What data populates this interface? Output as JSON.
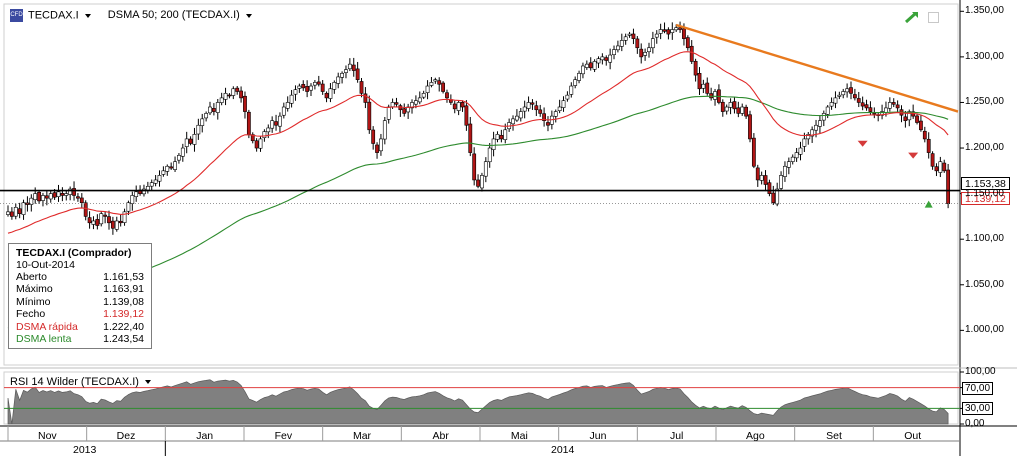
{
  "header": {
    "symbol": "TECDAX.I",
    "indicator": "DSMA 50; 200 (TECDAX.I)",
    "rsi_label": "RSI 14 Wilder (TECDAX.I)"
  },
  "legend": {
    "title": "TECDAX.I (Comprador)",
    "date": "10-Out-2014",
    "rows": [
      {
        "label": "Aberto",
        "value": "1.161,53"
      },
      {
        "label": "Máximo",
        "value": "1.163,91"
      },
      {
        "label": "Mínimo",
        "value": "1.139,08"
      },
      {
        "label": "Fecho",
        "value": "1.139,12"
      },
      {
        "label": "DSMA rápida",
        "value": "1.222,40"
      },
      {
        "label": "DSMA lenta",
        "value": "1.243,54"
      }
    ]
  },
  "price_tags": {
    "level": "1.153,38",
    "last": "1.139,12"
  },
  "colors": {
    "up": "#ffffff",
    "down": "#b01515",
    "fast_ma": "#e02b2b",
    "slow_ma": "#2e8b2e",
    "trendline": "#e87a1e",
    "rsi_fill": "#808080"
  },
  "icons": {
    "logo": "cfd-logo-icon",
    "trend": "trend-arrow-icon",
    "window": "window-icon"
  },
  "chart_data": {
    "type": "candlestick",
    "y_ticks": [
      "1.350,00",
      "1.300,00",
      "1.250,00",
      "1.200,00",
      "1.150,00",
      "1.100,00",
      "1.050,00",
      "1.000,00"
    ],
    "y_tick_values": [
      1350,
      1300,
      1250,
      1200,
      1150,
      1100,
      1050,
      1000
    ],
    "ylim": [
      962,
      1358
    ],
    "horizontal_level": 1153.38,
    "last_close": 1139.12,
    "x_months": [
      "Nov",
      "Dez",
      "Jan",
      "Fev",
      "Mar",
      "Abr",
      "Mai",
      "Jun",
      "Jul",
      "Ago",
      "Set",
      "Out"
    ],
    "x_years": [
      "2013",
      "2014"
    ],
    "closes": [
      1130,
      1125,
      1135,
      1128,
      1140,
      1138,
      1145,
      1150,
      1142,
      1148,
      1145,
      1150,
      1146,
      1152,
      1148,
      1150,
      1155,
      1148,
      1145,
      1140,
      1125,
      1118,
      1120,
      1115,
      1128,
      1125,
      1118,
      1112,
      1120,
      1118,
      1130,
      1140,
      1148,
      1152,
      1150,
      1155,
      1158,
      1162,
      1165,
      1170,
      1175,
      1180,
      1178,
      1185,
      1192,
      1200,
      1210,
      1205,
      1215,
      1225,
      1232,
      1238,
      1245,
      1240,
      1250,
      1255,
      1260,
      1258,
      1265,
      1262,
      1255,
      1240,
      1215,
      1208,
      1200,
      1210,
      1218,
      1222,
      1230,
      1225,
      1235,
      1245,
      1250,
      1258,
      1264,
      1268,
      1266,
      1262,
      1268,
      1272,
      1270,
      1262,
      1255,
      1265,
      1272,
      1278,
      1282,
      1286,
      1292,
      1285,
      1275,
      1260,
      1250,
      1220,
      1205,
      1195,
      1210,
      1230,
      1245,
      1250,
      1248,
      1242,
      1238,
      1245,
      1250,
      1252,
      1255,
      1260,
      1268,
      1272,
      1275,
      1270,
      1262,
      1255,
      1250,
      1243,
      1250,
      1245,
      1225,
      1195,
      1165,
      1158,
      1170,
      1185,
      1200,
      1210,
      1215,
      1210,
      1220,
      1228,
      1232,
      1235,
      1240,
      1245,
      1250,
      1248,
      1242,
      1238,
      1230,
      1225,
      1235,
      1240,
      1245,
      1252,
      1258,
      1268,
      1275,
      1282,
      1290,
      1292,
      1288,
      1295,
      1298,
      1300,
      1296,
      1302,
      1308,
      1312,
      1318,
      1322,
      1325,
      1320,
      1310,
      1300,
      1305,
      1310,
      1320,
      1325,
      1330,
      1328,
      1325,
      1330,
      1332,
      1330,
      1320,
      1310,
      1295,
      1280,
      1265,
      1270,
      1260,
      1255,
      1262,
      1250,
      1240,
      1245,
      1250,
      1243,
      1238,
      1245,
      1235,
      1210,
      1180,
      1165,
      1170,
      1160,
      1150,
      1140,
      1155,
      1170,
      1180,
      1185,
      1190,
      1195,
      1200,
      1210,
      1215,
      1220,
      1225,
      1230,
      1238,
      1245,
      1250,
      1255,
      1258,
      1262,
      1265,
      1260,
      1255,
      1250,
      1246,
      1244,
      1240,
      1238,
      1236,
      1240,
      1244,
      1250,
      1248,
      1244,
      1236,
      1230,
      1240,
      1235,
      1228,
      1220,
      1210,
      1195,
      1180,
      1175,
      1185,
      1175,
      1139
    ],
    "fast_ma_start": 1105,
    "slow_ma_start": 1000,
    "rsi_ticks": [
      "100,00",
      "70,00",
      "30,00",
      "0,00"
    ],
    "rsi_tick_values": [
      100,
      70,
      30,
      0
    ],
    "rsi_ylim": [
      0,
      100
    ],
    "rsi_levels": [
      70,
      30
    ]
  }
}
